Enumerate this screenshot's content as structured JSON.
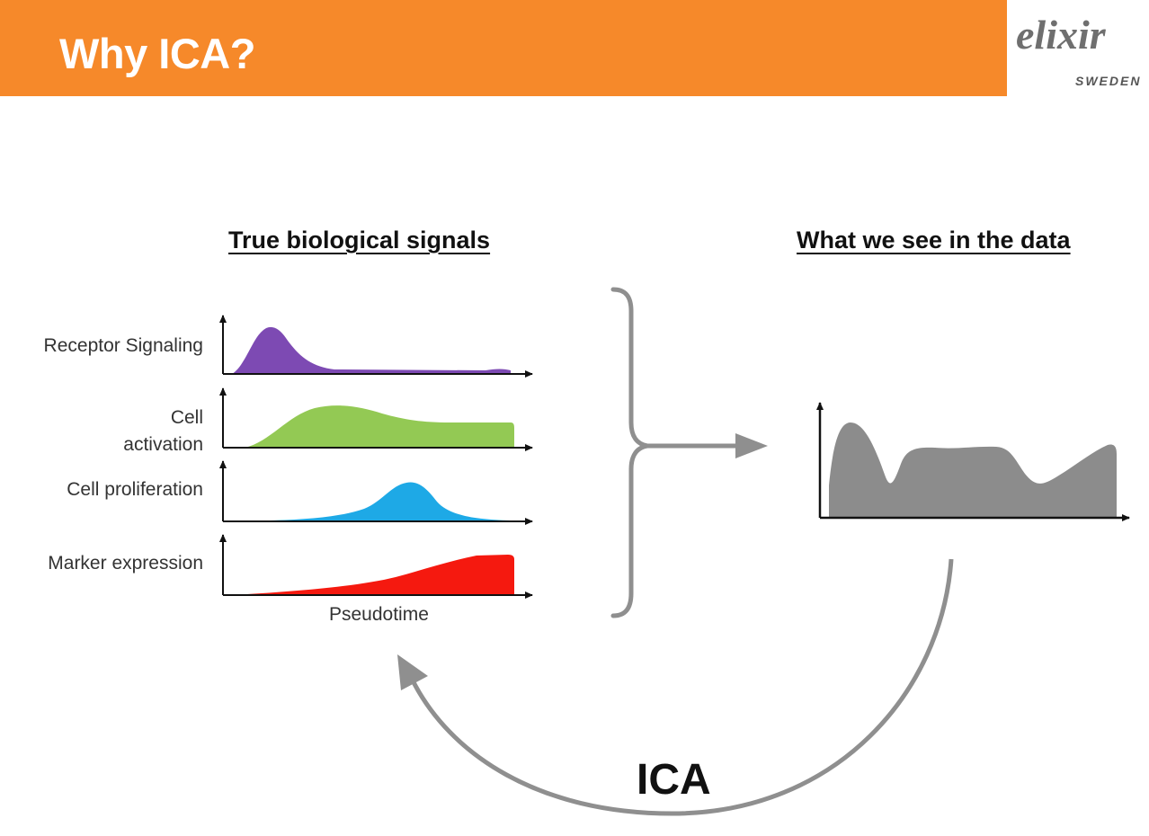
{
  "slide": {
    "title": "Why ICA?",
    "logo": {
      "main": "elixir",
      "sub": "SWEDEN"
    }
  },
  "left_panel": {
    "heading": "True biological signals",
    "signals": [
      {
        "label": "Receptor Signaling",
        "color": "#7d4ab3"
      },
      {
        "label": "Cell activation",
        "label_line1": "Cell",
        "label_line2": "activation",
        "color": "#93c954"
      },
      {
        "label": "Cell proliferation",
        "color": "#1ea9e6"
      },
      {
        "label": "Marker expression",
        "color": "#f5190f"
      }
    ],
    "x_axis_label": "Pseudotime"
  },
  "right_panel": {
    "heading": "What we see in the data",
    "mixture_color": "#8c8c8c"
  },
  "method": {
    "label": "ICA",
    "arrow_color": "#8f8f8f"
  }
}
